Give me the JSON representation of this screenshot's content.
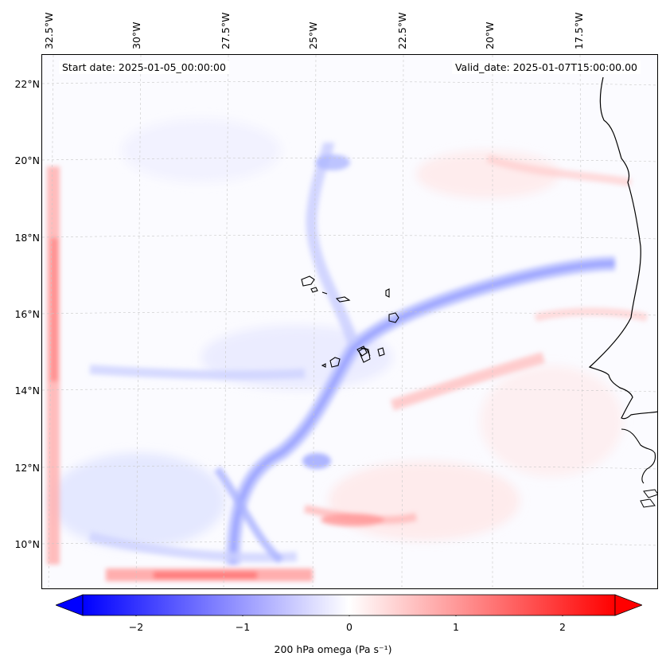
{
  "map": {
    "start_date_label": "Start date: 2025-01-05_00:00:00",
    "valid_date_label": "Valid_date: 2025-01-07T15:00:00.00",
    "lon_labels": [
      "32.5°W",
      "30°W",
      "27.5°W",
      "25°W",
      "22.5°W",
      "20°W",
      "17.5°W"
    ],
    "lat_labels": [
      "22°N",
      "20°N",
      "18°N",
      "16°N",
      "14°N",
      "12°N",
      "10°N"
    ],
    "extent": {
      "lon_min": -33.0,
      "lon_max": -15.5,
      "lat_min": 8.9,
      "lat_max": 22.8
    }
  },
  "colorbar": {
    "label": "200 hPa omega (Pa s⁻¹)",
    "ticks": [
      "−2",
      "−1",
      "0",
      "1",
      "2"
    ],
    "vmin": -2.5,
    "vmax": 2.5,
    "colormap": "bwr",
    "extend": "both"
  },
  "colors": {
    "negative": "#0000ff",
    "neutral": "#ffffff",
    "positive": "#ff0000",
    "coastline": "#000000",
    "grid": "#bbbbbb"
  }
}
